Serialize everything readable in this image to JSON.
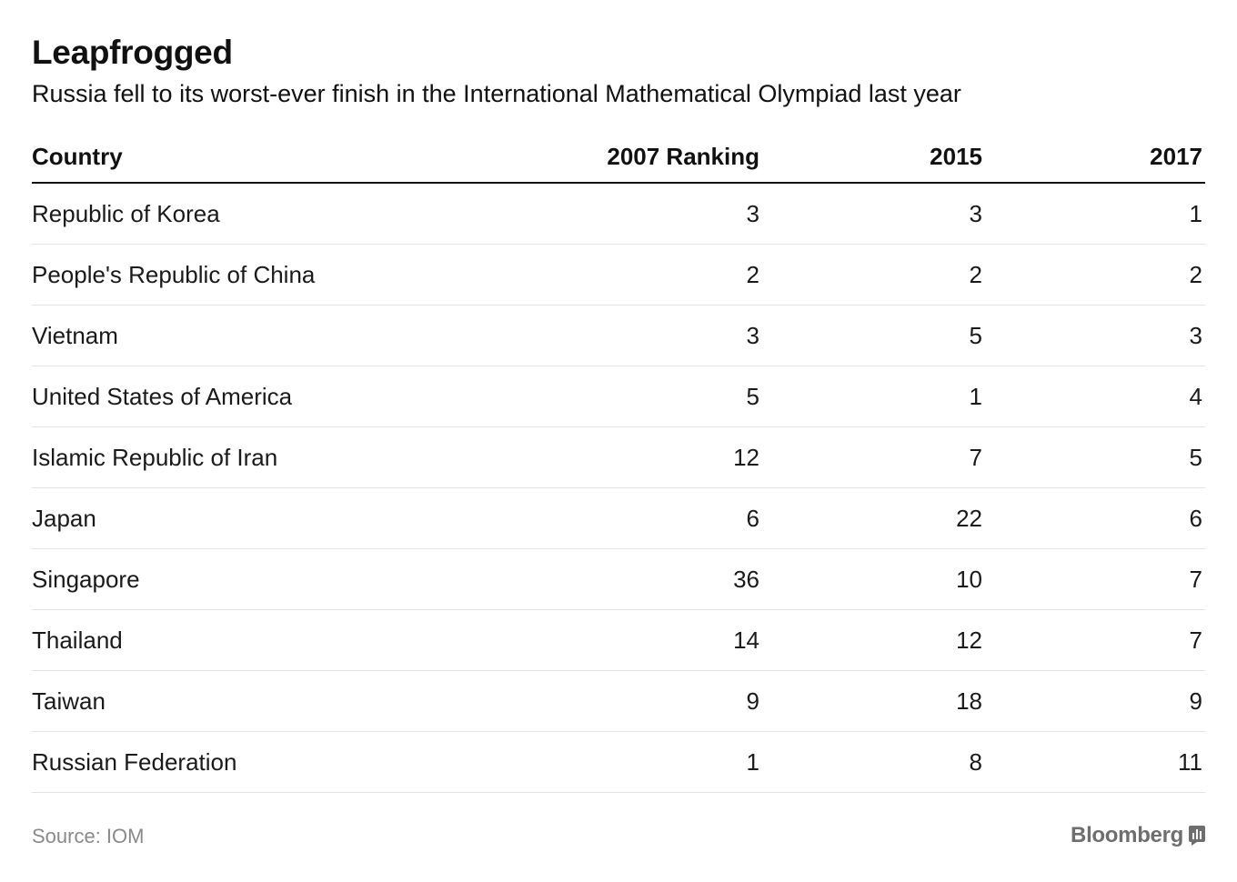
{
  "header": {
    "title": "Leapfrogged",
    "subtitle": "Russia fell to its worst-ever finish in the International Mathematical Olympiad last year"
  },
  "chart_data": {
    "type": "table",
    "title": "Leapfrogged",
    "subtitle": "Russia fell to its worst-ever finish in the International Mathematical Olympiad last year",
    "columns": [
      "Country",
      "2007 Ranking",
      "2015",
      "2017"
    ],
    "rows": [
      {
        "country": "Republic of Korea",
        "r2007": "3",
        "r2015": "3",
        "r2017": "1"
      },
      {
        "country": "People's Republic of China",
        "r2007": "2",
        "r2015": "2",
        "r2017": "2"
      },
      {
        "country": "Vietnam",
        "r2007": "3",
        "r2015": "5",
        "r2017": "3"
      },
      {
        "country": "United States of America",
        "r2007": "5",
        "r2015": "1",
        "r2017": "4"
      },
      {
        "country": "Islamic Republic of Iran",
        "r2007": "12",
        "r2015": "7",
        "r2017": "5"
      },
      {
        "country": "Japan",
        "r2007": "6",
        "r2015": "22",
        "r2017": "6"
      },
      {
        "country": "Singapore",
        "r2007": "36",
        "r2015": "10",
        "r2017": "7"
      },
      {
        "country": "Thailand",
        "r2007": "14",
        "r2015": "12",
        "r2017": "7"
      },
      {
        "country": "Taiwan",
        "r2007": "9",
        "r2015": "18",
        "r2017": "9"
      },
      {
        "country": "Russian Federation",
        "r2007": "1",
        "r2015": "8",
        "r2017": "11"
      }
    ]
  },
  "footer": {
    "source": "Source: IOM",
    "brand": "Bloomberg",
    "brand_icon": "bloomberg-logo-icon"
  },
  "colors": {
    "text": "#111111",
    "rule": "#111111",
    "row_divider": "#e3e3e3",
    "source_text": "#8a8a8a",
    "brand_text": "#6e6e6e"
  }
}
